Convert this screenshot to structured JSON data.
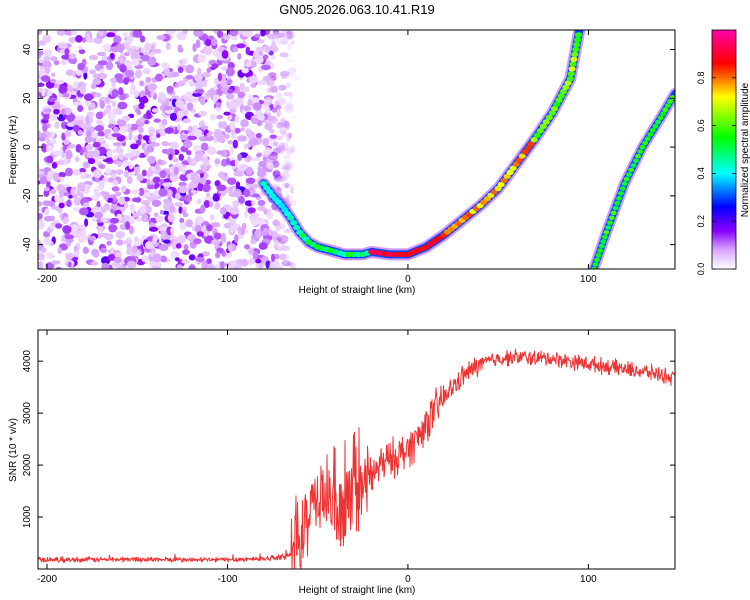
{
  "title": "GN05.2026.063.10.41.R19",
  "chart_data": [
    {
      "type": "heatmap",
      "xlabel": "Height of straight line (km)",
      "ylabel": "Frequency (Hz)",
      "xlim": [
        -205,
        148
      ],
      "ylim": [
        -50,
        48
      ],
      "xticks": [
        -200,
        -100,
        0,
        100
      ],
      "yticks": [
        -40,
        -20,
        0,
        20,
        40
      ],
      "xtick_labels": [
        "-200",
        "-100",
        "0",
        "100"
      ],
      "ytick_labels": [
        "-40",
        "-20",
        "0",
        "20",
        "40"
      ],
      "colorbar": {
        "label": "Normalized spectral amplitude",
        "range": [
          0,
          1
        ],
        "ticks": [
          "0.0",
          "0.2",
          "0.4",
          "0.6",
          "0.8"
        ],
        "tick_values": [
          0,
          0.2,
          0.4,
          0.6,
          0.8
        ],
        "colors": [
          "#ffffff",
          "#d9a6ff",
          "#8800ff",
          "#0000ff",
          "#00ffff",
          "#00ff00",
          "#ffff00",
          "#ff0000",
          "#ff00aa"
        ]
      },
      "noise_region": {
        "x": [
          -205,
          -65
        ],
        "amplitude": 0.15
      },
      "main_trace": {
        "x": [
          -80,
          -75,
          -70,
          -65,
          -60,
          -55,
          -50,
          -45,
          -40,
          -35,
          -30,
          -25,
          -20,
          -10,
          0,
          10,
          20,
          30,
          40,
          50,
          60,
          70,
          80,
          90,
          95
        ],
        "y": [
          -15,
          -20,
          -24,
          -29,
          -35,
          -39,
          -41,
          -42,
          -43,
          -44,
          -44,
          -44,
          -43,
          -44,
          -44,
          -41,
          -36,
          -30,
          -24,
          -17,
          -7,
          3,
          14,
          28,
          48
        ],
        "peak_amplitude": 1.0
      },
      "second_trace": {
        "x": [
          103,
          110,
          120,
          130,
          140,
          148
        ],
        "y": [
          -50,
          -35,
          -15,
          0,
          12,
          22
        ],
        "peak_amplitude": 0.6
      }
    },
    {
      "type": "line",
      "xlabel": "Height of straight line (km)",
      "ylabel": "SNR (10 * v/v)",
      "xlim": [
        -205,
        148
      ],
      "ylim": [
        0,
        4600
      ],
      "xticks": [
        -200,
        -100,
        0,
        100
      ],
      "yticks": [
        1000,
        2000,
        3000,
        4000
      ],
      "xtick_labels": [
        "-200",
        "-100",
        "0",
        "100"
      ],
      "ytick_labels": [
        "1000",
        "2000",
        "3000",
        "4000"
      ],
      "color": "#ee3333",
      "series": [
        {
          "x": [
            -205,
            -180,
            -150,
            -120,
            -100,
            -80,
            -70,
            -65,
            -60,
            -55,
            -50,
            -45,
            -40,
            -35,
            -30,
            -25,
            -20,
            -15,
            -10,
            -5,
            0,
            5,
            10,
            20,
            30,
            40,
            50,
            60,
            70,
            80,
            90,
            100,
            110,
            120,
            130,
            140,
            148
          ],
          "y": [
            180,
            180,
            185,
            175,
            180,
            200,
            230,
            270,
            450,
            1000,
            1400,
            1500,
            900,
            1100,
            1400,
            1600,
            1800,
            2000,
            2100,
            2200,
            2300,
            2500,
            2800,
            3300,
            3700,
            3950,
            4050,
            4080,
            4060,
            4050,
            4000,
            3950,
            3900,
            3850,
            3800,
            3750,
            3650
          ]
        }
      ]
    }
  ]
}
